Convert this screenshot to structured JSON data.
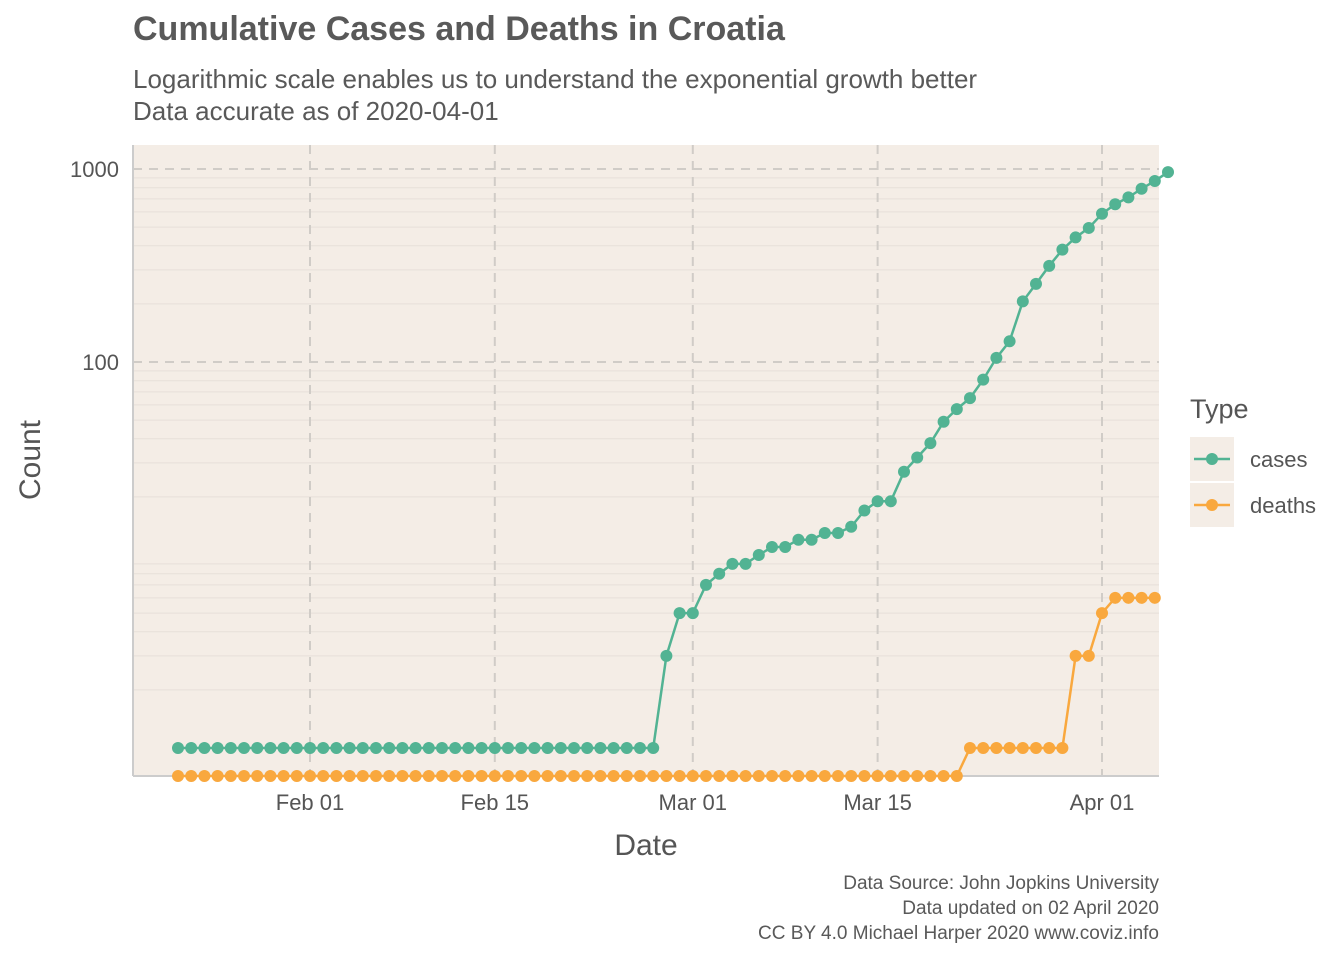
{
  "chart_data": {
    "type": "line",
    "title": "Cumulative Cases and Deaths in Croatia",
    "subtitle_lines": [
      "Logarithmic scale enables us to understand the exponential growth better",
      "Data accurate as of 2020-04-01"
    ],
    "xlabel": "Date",
    "ylabel": "Count",
    "y_scale": "log10",
    "ylim": [
      1,
      1000
    ],
    "y_ticks": [
      100,
      1000
    ],
    "y_tick_labels": [
      "100",
      "1000"
    ],
    "x_ticks": [
      "2020-02-01",
      "2020-02-15",
      "2020-03-01",
      "2020-03-15",
      "2020-04-01"
    ],
    "x_tick_labels": [
      "Feb 01",
      "Feb 15",
      "Mar 01",
      "Mar 15",
      "Apr 01"
    ],
    "x_start": "2020-01-22",
    "legend_title": "Type",
    "legend_position": "right",
    "grid": true,
    "background_color": "#f4ede6",
    "series": [
      {
        "name": "cases",
        "color": "#52b393",
        "values": [
          1,
          1,
          1,
          1,
          1,
          1,
          1,
          1,
          1,
          1,
          1,
          1,
          1,
          1,
          1,
          1,
          1,
          1,
          1,
          1,
          1,
          1,
          1,
          1,
          1,
          1,
          1,
          1,
          1,
          1,
          1,
          1,
          1,
          1,
          1,
          1,
          1,
          3,
          5,
          5,
          7,
          8,
          9,
          9,
          10,
          11,
          11,
          12,
          12,
          13,
          13,
          14,
          17,
          19,
          19,
          27,
          32,
          38,
          49,
          57,
          65,
          81,
          105,
          128,
          206,
          254,
          315,
          382,
          442,
          495,
          586,
          657,
          713,
          790,
          867,
          963
        ]
      },
      {
        "name": "deaths",
        "color": "#f9a83e",
        "values": [
          0,
          0,
          0,
          0,
          0,
          0,
          0,
          0,
          0,
          0,
          0,
          0,
          0,
          0,
          0,
          0,
          0,
          0,
          0,
          0,
          0,
          0,
          0,
          0,
          0,
          0,
          0,
          0,
          0,
          0,
          0,
          0,
          0,
          0,
          0,
          0,
          0,
          0,
          0,
          0,
          0,
          0,
          0,
          0,
          0,
          0,
          0,
          0,
          0,
          0,
          0,
          0,
          0,
          0,
          0,
          0,
          0,
          0,
          0,
          0,
          1,
          1,
          1,
          1,
          1,
          1,
          1,
          1,
          3,
          3,
          5,
          6,
          6,
          6,
          6
        ]
      }
    ]
  },
  "caption": {
    "line1": "Data Source: John Jopkins University",
    "line2": "Data updated on 02 April 2020",
    "line3": "CC BY 4.0 Michael Harper 2020 www.coviz.info"
  }
}
